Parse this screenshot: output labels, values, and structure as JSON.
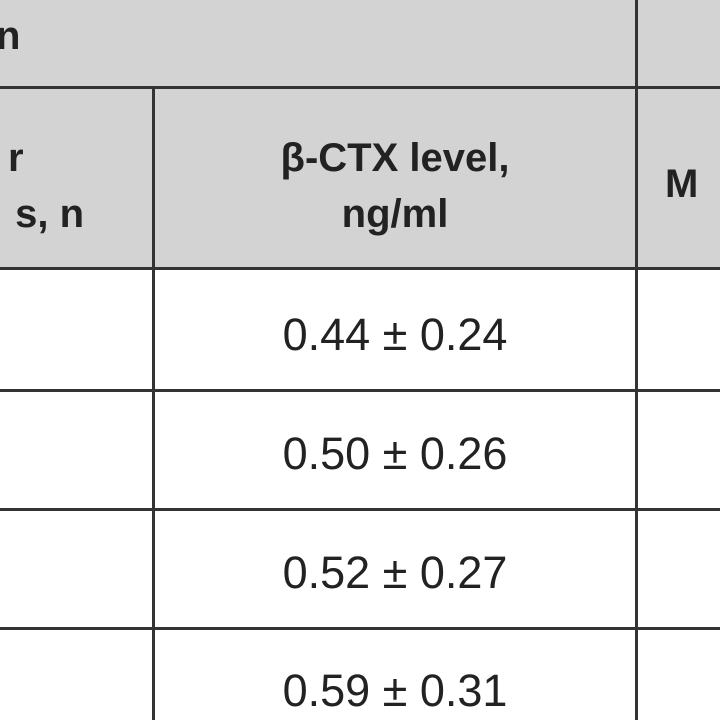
{
  "table": {
    "title_fragment": "n",
    "columns": [
      {
        "lines": [
          "r",
          "s, n"
        ]
      },
      {
        "lines": [
          "β-CTX level,",
          "ng/ml"
        ]
      },
      {
        "lines": [
          "M"
        ]
      }
    ],
    "rows": [
      [
        "0.44 ± 0.24"
      ],
      [
        "0.50 ± 0.26"
      ],
      [
        "0.52 ± 0.27"
      ],
      [
        "0.59 ± 0.31"
      ]
    ]
  }
}
